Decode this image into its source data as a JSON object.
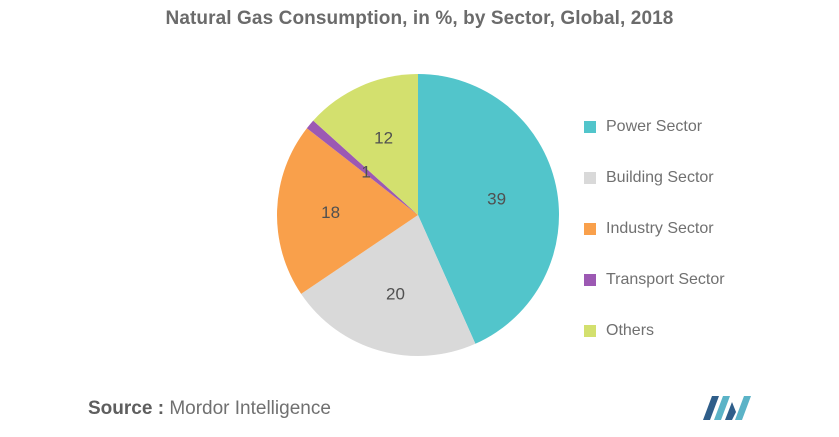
{
  "title": "Natural Gas Consumption, in %, by Sector, Global, 2018",
  "chart_data": {
    "type": "pie",
    "title": "Natural Gas Consumption, in %, by Sector, Global, 2018",
    "slices": [
      {
        "label": "Power Sector",
        "value": 39,
        "color": "#52c5cb"
      },
      {
        "label": "Building Sector",
        "value": 20,
        "color": "#d9d9d9"
      },
      {
        "label": "Industry Sector",
        "value": 18,
        "color": "#f9a04b"
      },
      {
        "label": "Transport Sector",
        "value": 1,
        "color": "#9c59b3"
      },
      {
        "label": "Others",
        "value": 12,
        "color": "#d3e06e"
      }
    ],
    "legend_position": "right",
    "start": "top, clockwise"
  },
  "source": {
    "label": "Source :",
    "text": "Mordor Intelligence"
  },
  "logo": {
    "icon": "mordor-intelligence-logo",
    "color_dark": "#2f5e8a",
    "color_light": "#5bb3c7"
  }
}
